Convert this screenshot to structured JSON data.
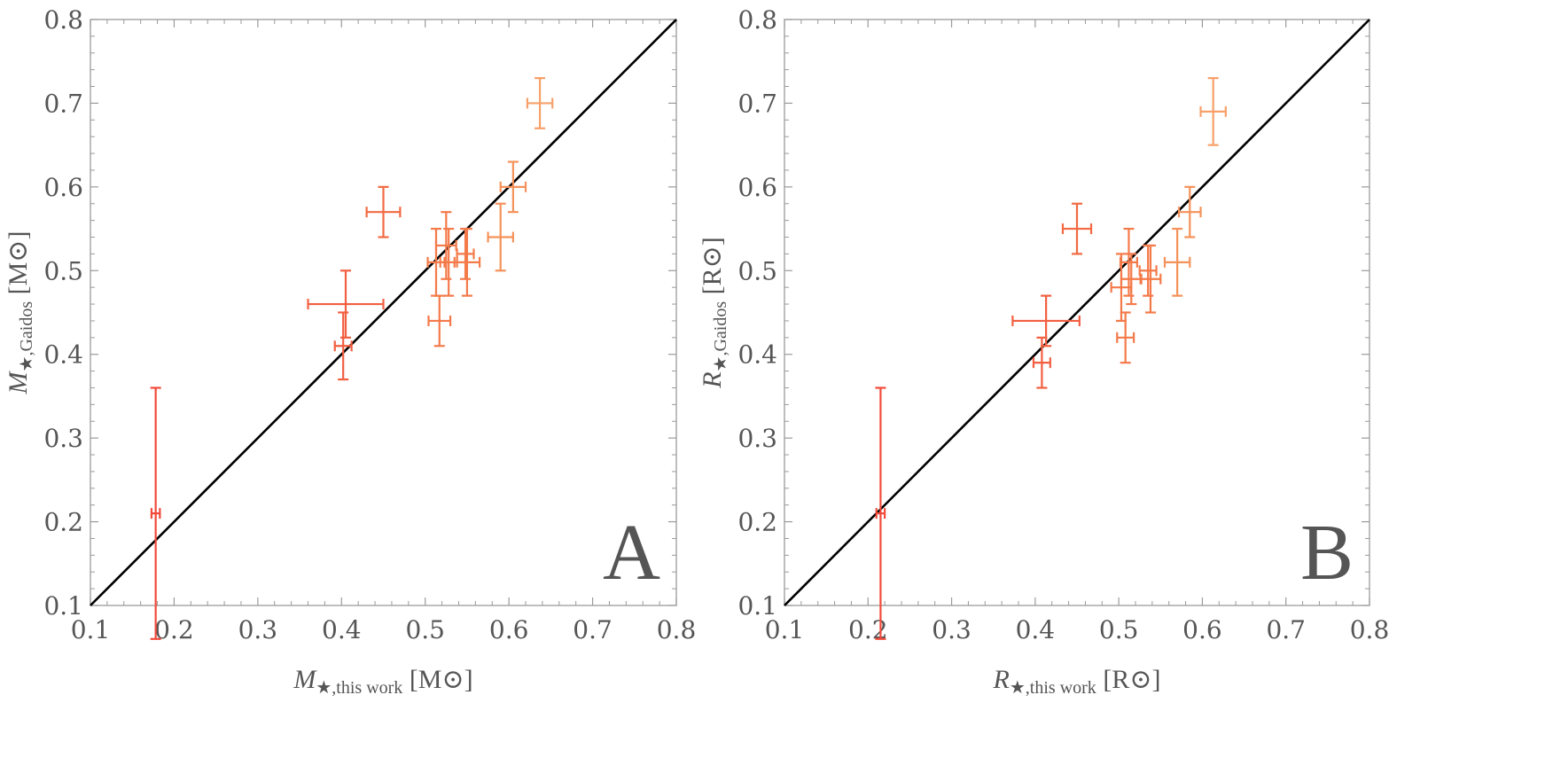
{
  "chart_data": [
    {
      "type": "scatter",
      "panel_label": "A",
      "xlabel": {
        "symbol": "M",
        "subscript": "★,this work",
        "unit": "[M⊙]"
      },
      "ylabel": {
        "symbol": "M",
        "subscript": "★,Gaidos",
        "unit": "[M⊙]"
      },
      "xlim": [
        0.1,
        0.8
      ],
      "ylim": [
        0.1,
        0.8
      ],
      "xticks": [
        "0.1",
        "0.2",
        "0.3",
        "0.4",
        "0.5",
        "0.6",
        "0.7",
        "0.8"
      ],
      "yticks": [
        "0.1",
        "0.2",
        "0.3",
        "0.4",
        "0.5",
        "0.6",
        "0.7",
        "0.8"
      ],
      "reference_line": {
        "name": "one-to-one",
        "from": [
          0.1,
          0.1
        ],
        "to": [
          0.8,
          0.8
        ],
        "color": "#000000"
      },
      "points": [
        {
          "x": 0.178,
          "xerr": 0.005,
          "y": 0.21,
          "yerr": 0.15,
          "color": "#f24a3a"
        },
        {
          "x": 0.405,
          "xerr": 0.045,
          "y": 0.46,
          "yerr": 0.04,
          "color": "#f25f40"
        },
        {
          "x": 0.402,
          "xerr": 0.01,
          "y": 0.41,
          "yerr": 0.04,
          "color": "#f25f40"
        },
        {
          "x": 0.45,
          "xerr": 0.02,
          "y": 0.57,
          "yerr": 0.03,
          "color": "#f26a42"
        },
        {
          "x": 0.513,
          "xerr": 0.01,
          "y": 0.51,
          "yerr": 0.04,
          "color": "#f47a4a"
        },
        {
          "x": 0.517,
          "xerr": 0.013,
          "y": 0.44,
          "yerr": 0.03,
          "color": "#f47a4a"
        },
        {
          "x": 0.525,
          "xerr": 0.012,
          "y": 0.53,
          "yerr": 0.04,
          "color": "#f47a4a"
        },
        {
          "x": 0.528,
          "xerr": 0.01,
          "y": 0.51,
          "yerr": 0.04,
          "color": "#f47a4a"
        },
        {
          "x": 0.55,
          "xerr": 0.015,
          "y": 0.51,
          "yerr": 0.04,
          "color": "#f47a4a"
        },
        {
          "x": 0.548,
          "xerr": 0.01,
          "y": 0.52,
          "yerr": 0.03,
          "color": "#f47a4a"
        },
        {
          "x": 0.59,
          "xerr": 0.015,
          "y": 0.54,
          "yerr": 0.04,
          "color": "#f5925a"
        },
        {
          "x": 0.605,
          "xerr": 0.015,
          "y": 0.6,
          "yerr": 0.03,
          "color": "#f5925a"
        },
        {
          "x": 0.637,
          "xerr": 0.015,
          "y": 0.7,
          "yerr": 0.03,
          "color": "#f7a06a"
        }
      ]
    },
    {
      "type": "scatter",
      "panel_label": "B",
      "xlabel": {
        "symbol": "R",
        "subscript": "★,this work",
        "unit": "[R⊙]"
      },
      "ylabel": {
        "symbol": "R",
        "subscript": "★,Gaidos",
        "unit": "[R⊙]"
      },
      "xlim": [
        0.1,
        0.8
      ],
      "ylim": [
        0.1,
        0.8
      ],
      "xticks": [
        "0.1",
        "0.2",
        "0.3",
        "0.4",
        "0.5",
        "0.6",
        "0.7",
        "0.8"
      ],
      "yticks": [
        "0.1",
        "0.2",
        "0.3",
        "0.4",
        "0.5",
        "0.6",
        "0.7",
        "0.8"
      ],
      "reference_line": {
        "name": "one-to-one",
        "from": [
          0.1,
          0.1
        ],
        "to": [
          0.8,
          0.8
        ],
        "color": "#000000"
      },
      "points": [
        {
          "x": 0.215,
          "xerr": 0.005,
          "y": 0.21,
          "yerr": 0.15,
          "color": "#f24a3a"
        },
        {
          "x": 0.413,
          "xerr": 0.04,
          "y": 0.44,
          "yerr": 0.03,
          "color": "#f25f40"
        },
        {
          "x": 0.408,
          "xerr": 0.01,
          "y": 0.39,
          "yerr": 0.03,
          "color": "#f25f40"
        },
        {
          "x": 0.45,
          "xerr": 0.017,
          "y": 0.55,
          "yerr": 0.03,
          "color": "#f26a42"
        },
        {
          "x": 0.503,
          "xerr": 0.012,
          "y": 0.48,
          "yerr": 0.04,
          "color": "#f47a4a"
        },
        {
          "x": 0.508,
          "xerr": 0.01,
          "y": 0.42,
          "yerr": 0.03,
          "color": "#f47a4a"
        },
        {
          "x": 0.512,
          "xerr": 0.01,
          "y": 0.51,
          "yerr": 0.04,
          "color": "#f47a4a"
        },
        {
          "x": 0.515,
          "xerr": 0.012,
          "y": 0.49,
          "yerr": 0.03,
          "color": "#f47a4a"
        },
        {
          "x": 0.535,
          "xerr": 0.01,
          "y": 0.5,
          "yerr": 0.03,
          "color": "#f47a4a"
        },
        {
          "x": 0.538,
          "xerr": 0.012,
          "y": 0.49,
          "yerr": 0.04,
          "color": "#f47a4a"
        },
        {
          "x": 0.57,
          "xerr": 0.015,
          "y": 0.51,
          "yerr": 0.04,
          "color": "#f5925a"
        },
        {
          "x": 0.585,
          "xerr": 0.013,
          "y": 0.57,
          "yerr": 0.03,
          "color": "#f5925a"
        },
        {
          "x": 0.613,
          "xerr": 0.015,
          "y": 0.69,
          "yerr": 0.04,
          "color": "#f7a06a"
        }
      ]
    }
  ]
}
